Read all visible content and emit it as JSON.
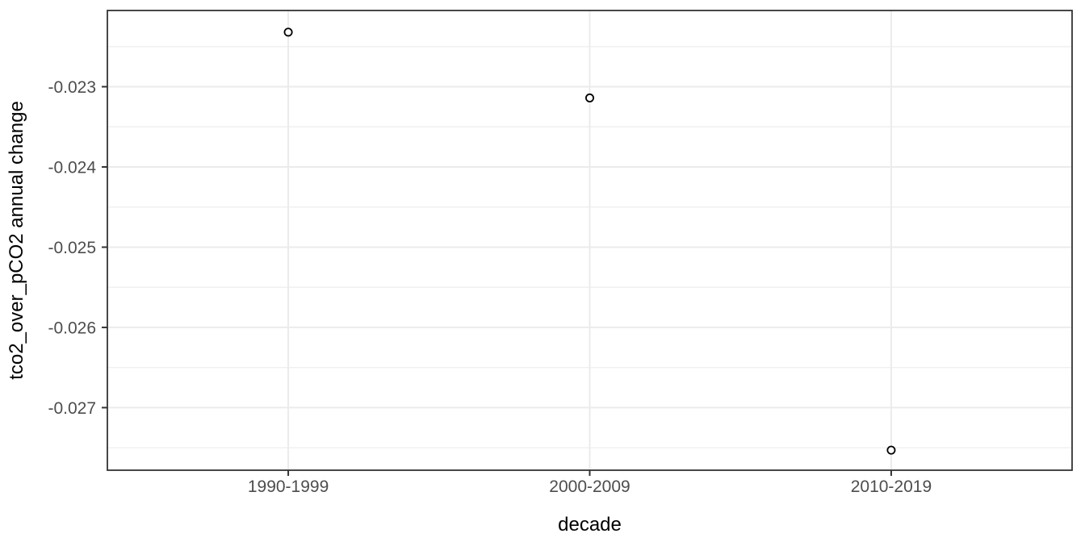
{
  "chart_data": {
    "type": "scatter",
    "title": "",
    "xlabel": "decade",
    "ylabel": "tco2_over_pCO2 annual change",
    "categories": [
      "1990-1999",
      "2000-2009",
      "2010-2019"
    ],
    "values": [
      -0.02232,
      -0.02314,
      -0.02753
    ],
    "yticks": [
      -0.023,
      -0.024,
      -0.025,
      -0.026,
      -0.027
    ],
    "ytick_labels": [
      "-0.023",
      "-0.024",
      "-0.025",
      "-0.026",
      "-0.027"
    ],
    "y_minor_ticks": [
      -0.0225,
      -0.0235,
      -0.0245,
      -0.0255,
      -0.0265,
      -0.0275
    ],
    "ylim": [
      -0.02778,
      -0.02205
    ],
    "grid": "horizontal major+minor, vertical major at categories",
    "legend": "none",
    "marker": {
      "shape": "open-circle",
      "radius_px": 4.6,
      "stroke": "#000000",
      "fill": "#ffffff",
      "stroke_width": 1.8
    },
    "colors": {
      "figure_background": "#ffffff",
      "panel_background": "#ffffff",
      "panel_border": "#333333",
      "grid_major": "#ebebeb",
      "grid_minor": "#efefef",
      "tick_mark": "#333333",
      "tick_label": "#4d4d4d",
      "axis_title": "#000000"
    }
  }
}
